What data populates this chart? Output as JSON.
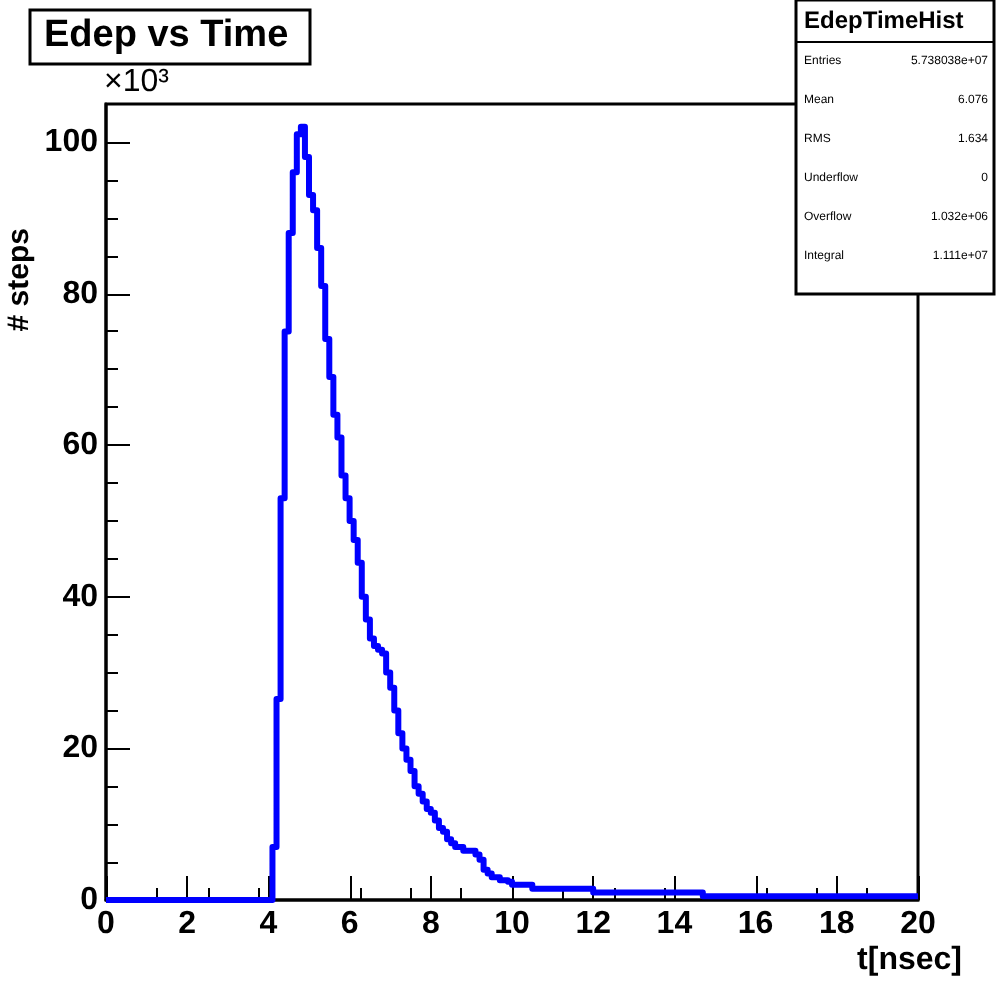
{
  "chart_data": {
    "type": "histogram",
    "title": "Edep vs Time",
    "xlabel": "t[nsec]",
    "ylabel": "# steps",
    "annotations": [
      "×10³",
      "EdepTimeHist",
      "Entries 5.738038e+07",
      "Mean 6.076",
      "RMS 1.634",
      "Underflow 0",
      "Overflow 1.032e+06",
      "Integral 1.111e+07"
    ],
    "bins": [
      0,
      4,
      4.1,
      4.2,
      4.3,
      4.4,
      4.5,
      4.6,
      4.7,
      4.8,
      4.9,
      5,
      5.1,
      5.2,
      5.3,
      5.4,
      5.5,
      5.6,
      5.7,
      5.8,
      5.9,
      6,
      6.1,
      6.2,
      6.3,
      6.4,
      6.5,
      6.6,
      6.7,
      6.8,
      6.9,
      7,
      7.1,
      7.2,
      7.3,
      7.4,
      7.5,
      7.6,
      7.7,
      7.8,
      7.9,
      8,
      8.1,
      8.2,
      8.3,
      8.4,
      8.5,
      8.6,
      8.7,
      8.8,
      8.9,
      9,
      9.1,
      9.2,
      9.3,
      9.4,
      9.5,
      9.6,
      9.7,
      9.8,
      9.9,
      10,
      10.5,
      12,
      14.7,
      20
    ],
    "values": [
      0,
      0,
      7,
      26.5,
      53,
      75,
      88,
      96,
      101,
      102,
      98,
      93,
      91,
      86,
      81,
      74,
      69,
      64,
      61,
      56,
      53,
      50,
      47.5,
      44.5,
      40,
      37,
      34.5,
      33.5,
      33,
      32.5,
      30,
      28,
      25,
      22,
      20,
      18.5,
      17,
      15,
      14,
      13,
      12,
      11.5,
      10.5,
      9.5,
      9,
      8,
      7.5,
      7,
      7,
      6.5,
      6.5,
      6.5,
      6,
      5.3,
      4,
      3.5,
      3,
      3,
      2.6,
      2.6,
      2.4,
      2,
      1.5,
      1,
      0.5
    ],
    "color": "#0000ff",
    "xlim": [
      0,
      20
    ],
    "xticks": [
      0,
      2,
      4,
      6,
      8,
      10,
      12,
      14,
      16,
      18,
      20
    ],
    "ylim": [
      0,
      105
    ],
    "yticks": [
      0,
      20,
      40,
      60,
      80,
      100
    ],
    "grid": false
  }
}
